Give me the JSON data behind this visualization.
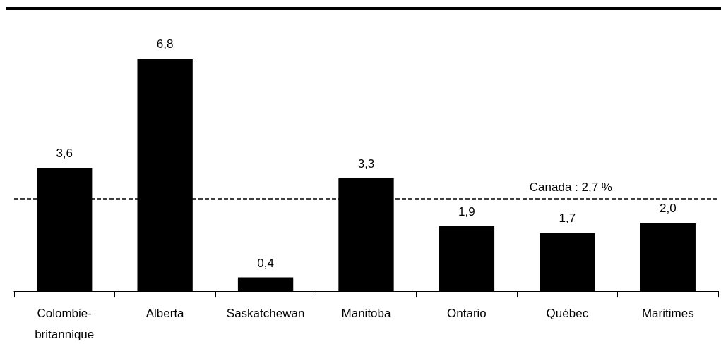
{
  "chart_data": {
    "type": "bar",
    "categories": [
      "Colombie-britannique",
      "Alberta",
      "Saskatchewan",
      "Manitoba",
      "Ontario",
      "Québec",
      "Maritimes"
    ],
    "values": [
      3.6,
      6.8,
      0.4,
      3.3,
      1.9,
      1.7,
      2.0
    ],
    "value_labels": [
      "3,6",
      "6,8",
      "0,4",
      "3,3",
      "1,9",
      "1,7",
      "2,0"
    ],
    "color": "#000000",
    "ref_lines": [
      {
        "axis": "y",
        "value": 2.7,
        "label": "Canada : 2,7 %",
        "color": "#000000",
        "line_style": "dashed"
      }
    ],
    "grid": false,
    "tick_labels": "x"
  }
}
